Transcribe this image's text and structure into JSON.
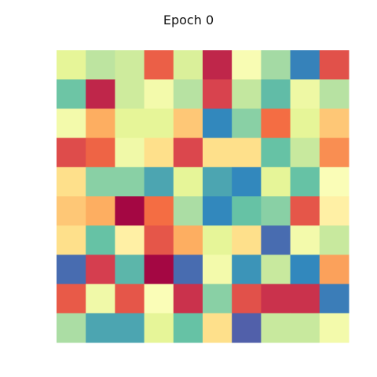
{
  "chart_data": {
    "type": "heatmap",
    "title": "Epoch 0",
    "xlabel": "",
    "ylabel": "",
    "rows": 10,
    "cols": 10,
    "axes_visible": false,
    "grid": false,
    "colormap": "Spectral",
    "vrange": [
      0,
      1
    ],
    "values": [
      [
        0.6,
        0.67,
        0.64,
        0.17,
        0.62,
        0.06,
        0.53,
        0.71,
        0.91,
        0.14
      ],
      [
        0.79,
        0.06,
        0.64,
        0.55,
        0.68,
        0.11,
        0.66,
        0.81,
        0.57,
        0.68
      ],
      [
        0.55,
        0.3,
        0.6,
        0.6,
        0.35,
        0.9,
        0.75,
        0.2,
        0.6,
        0.35
      ],
      [
        0.13,
        0.18,
        0.56,
        0.4,
        0.12,
        0.4,
        0.4,
        0.8,
        0.65,
        0.25
      ],
      [
        0.4,
        0.75,
        0.75,
        0.85,
        0.6,
        0.85,
        0.9,
        0.6,
        0.8,
        0.52
      ],
      [
        0.35,
        0.3,
        0.01,
        0.2,
        0.7,
        0.9,
        0.8,
        0.75,
        0.15,
        0.45
      ],
      [
        0.4,
        0.8,
        0.45,
        0.15,
        0.3,
        0.6,
        0.4,
        0.95,
        0.55,
        0.65
      ],
      [
        0.95,
        0.1,
        0.82,
        0.01,
        0.95,
        0.55,
        0.88,
        0.65,
        0.9,
        0.28
      ],
      [
        0.16,
        0.56,
        0.15,
        0.52,
        0.08,
        0.75,
        0.14,
        0.08,
        0.08,
        0.92
      ],
      [
        0.7,
        0.85,
        0.85,
        0.6,
        0.8,
        0.4,
        0.97,
        0.65,
        0.65,
        0.55
      ]
    ]
  }
}
